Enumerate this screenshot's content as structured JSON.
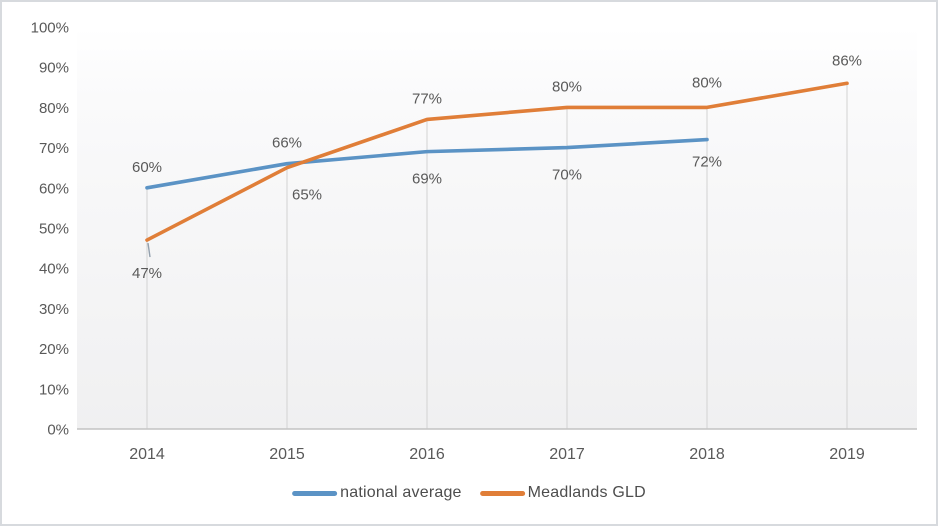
{
  "chart_data": {
    "type": "line",
    "title": "",
    "categories": [
      "2014",
      "2015",
      "2016",
      "2017",
      "2018",
      "2019"
    ],
    "series": [
      {
        "name": "national average",
        "color": "#5b93c5",
        "values": [
          60,
          66,
          69,
          70,
          72,
          null
        ],
        "labels": [
          {
            "text": "60%",
            "side": "above"
          },
          {
            "text": "66%",
            "side": "above"
          },
          {
            "text": "69%",
            "side": "below"
          },
          {
            "text": "70%",
            "side": "below"
          },
          {
            "text": "72%",
            "side": "below",
            "dy": -5
          },
          null
        ]
      },
      {
        "name": "Meadlands GLD",
        "color": "#e07e38",
        "values": [
          47,
          65,
          77,
          80,
          80,
          86
        ],
        "labels": [
          {
            "text": "47%",
            "side": "below",
            "dy": 6
          },
          {
            "text": "65%",
            "side": "below",
            "dx": 20
          },
          {
            "text": "77%",
            "side": "above"
          },
          {
            "text": "80%",
            "side": "above"
          },
          {
            "text": "80%",
            "side": "above",
            "dy": -4
          },
          {
            "text": "86%",
            "side": "above",
            "dy": -2
          }
        ]
      }
    ],
    "ylim": [
      0,
      100
    ],
    "y_tick_step": 10,
    "y_tick_labels": [
      "0%",
      "10%",
      "20%",
      "30%",
      "40%",
      "50%",
      "60%",
      "70%",
      "80%",
      "90%",
      "100%"
    ],
    "legend_position": "bottom",
    "grid": "vertical-drop-lines",
    "axis_text_color": "#595959",
    "axis_line_color": "#c3c3c3",
    "drop_line_color": "#d2d2d2",
    "plot_fill_top": "#ffffff",
    "plot_fill_bottom": "#f0f0f1"
  }
}
